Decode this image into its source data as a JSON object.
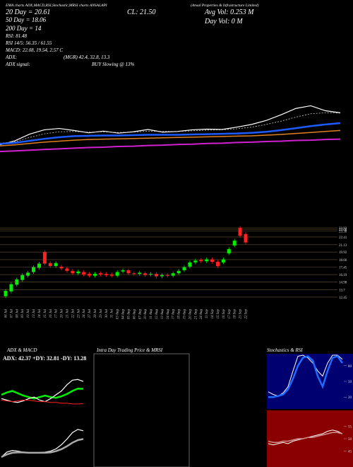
{
  "header": {
    "title": "EMA charts ADX,MACD,RSI,Stochastic,MRSI charts ANSALAPI",
    "subtitle": "(Ansal Properties & Infrastructure Limited)",
    "stats": [
      "20 Day = 20.61",
      "CL: 21.50",
      "Avg Vol: 0.253 M",
      "50 Day = 18.06",
      "Day Vol: 0 M",
      "200 Day = 14",
      "RSI: 81.48",
      "RSI 14/5: 56.35 / 61.55",
      "MACD: 22.08, 19.54, 2.57 C",
      "ADX:",
      "(MGR) 42.4, 32.8, 13.3",
      "ADX signal:",
      "BUY Slowing @ 13%"
    ]
  },
  "chart_data": [
    {
      "type": "line",
      "ylim": [
        8,
        26
      ],
      "series": [
        {
          "color": "#ffffff",
          "values": [
            12.3,
            13.5,
            15.5,
            16.8,
            17.2,
            16.6,
            15.9,
            16.4,
            15.8,
            16.2,
            16.9,
            16.1,
            16.3,
            16.8,
            17.0,
            16.9,
            17.6,
            18.4,
            19.6,
            21.3,
            23.2,
            24.0,
            22.5,
            21.9
          ]
        },
        {
          "color": "#cccccc",
          "values": [
            12.8,
            13.2,
            14.5,
            15.6,
            16.2,
            16.3,
            16.1,
            16.2,
            16.0,
            16.1,
            16.4,
            16.3,
            16.3,
            16.5,
            16.7,
            16.8,
            17.1,
            17.6,
            18.4,
            19.4,
            20.6,
            21.6,
            21.9,
            21.8
          ]
        },
        {
          "color": "#1e5bff",
          "values": [
            12.6,
            12.9,
            13.5,
            14.1,
            14.6,
            14.9,
            15.0,
            15.1,
            15.1,
            15.2,
            15.3,
            15.3,
            15.3,
            15.4,
            15.5,
            15.6,
            15.7,
            15.9,
            16.2,
            16.7,
            17.3,
            17.9,
            18.4,
            18.8
          ]
        },
        {
          "color": "#e08020",
          "values": [
            12.0,
            12.3,
            12.7,
            13.1,
            13.4,
            13.7,
            13.9,
            14.0,
            14.1,
            14.2,
            14.3,
            14.4,
            14.5,
            14.6,
            14.7,
            14.8,
            14.9,
            15.0,
            15.2,
            15.4,
            15.7,
            16.0,
            16.3,
            16.6
          ]
        },
        {
          "color": "#d020d0",
          "values": [
            10.3,
            10.5,
            10.7,
            10.9,
            11.1,
            11.3,
            11.5,
            11.6,
            11.8,
            11.9,
            12.1,
            12.2,
            12.4,
            12.5,
            12.7,
            12.8,
            13.0,
            13.1,
            13.3,
            13.4,
            13.6,
            13.7,
            13.9,
            14.0
          ]
        }
      ]
    },
    {
      "type": "candlestick",
      "ylim": [
        11.86,
        24.74
      ],
      "yticks": [
        23.92,
        23.68,
        23.38,
        22.41,
        21.13,
        19.92,
        18.66,
        17.45,
        16.19,
        14.98,
        13.7,
        12.45
      ],
      "grid": true,
      "up_color": "#00ee00",
      "down_color": "#ff2020",
      "categories": [
        "06 Jul",
        "07 Jul",
        "08 Jul",
        "09 Jul",
        "10 Jul",
        "13 Jul",
        "14 Jul",
        "15 Jul",
        "16 Jul",
        "17 Jul",
        "20 Jul",
        "21 Jul",
        "22 Jul",
        "23 Jul",
        "24 Jul",
        "27 Jul",
        "28 Jul",
        "29 Jul",
        "30 Jul",
        "31 Jul",
        "03 Aug",
        "04 Aug",
        "05 Aug",
        "06 Aug",
        "07 Aug",
        "10 Aug",
        "11 Aug",
        "12 Aug",
        "13 Aug",
        "14 Aug",
        "17 Aug",
        "18 Aug",
        "19 Aug",
        "20 Aug",
        "21 Aug",
        "24 Aug",
        "11 Sep",
        "14 Sep",
        "15 Sep",
        "16 Sep",
        "17 Sep",
        "18 Sep",
        "21 Sep",
        "22 Sep"
      ],
      "open": [
        12.6,
        13.4,
        14.5,
        15.3,
        16.0,
        16.6,
        17.3,
        19.9,
        18.1,
        17.6,
        17.5,
        17.2,
        16.8,
        16.4,
        16.6,
        16.3,
        16.0,
        16.4,
        16.3,
        16.2,
        16.0,
        16.7,
        16.9,
        16.4,
        16.3,
        16.4,
        16.2,
        16.3,
        15.9,
        16.1,
        16.0,
        16.4,
        16.9,
        17.5,
        18.2,
        18.6,
        18.4,
        18.7,
        18.3,
        18.2,
        19.7,
        21.0,
        23.9,
        22.9
      ],
      "close": [
        13.5,
        14.6,
        15.4,
        16.1,
        16.5,
        17.4,
        18.0,
        18.0,
        17.6,
        18.1,
        17.2,
        16.8,
        16.4,
        16.7,
        16.2,
        16.0,
        16.3,
        16.2,
        16.1,
        16.0,
        16.6,
        16.9,
        16.4,
        16.3,
        16.5,
        16.1,
        16.3,
        15.9,
        16.1,
        16.0,
        16.4,
        16.8,
        17.4,
        18.2,
        18.5,
        18.4,
        18.7,
        18.3,
        17.6,
        18.7,
        20.4,
        21.8,
        22.6,
        21.5
      ],
      "high": [
        13.8,
        14.9,
        15.7,
        16.4,
        16.8,
        17.7,
        18.3,
        20.2,
        18.4,
        18.4,
        17.8,
        17.5,
        17.1,
        17.0,
        16.9,
        16.6,
        16.6,
        16.7,
        16.6,
        16.5,
        16.9,
        17.2,
        17.2,
        16.7,
        16.8,
        16.7,
        16.6,
        16.6,
        16.4,
        16.4,
        16.7,
        17.1,
        17.7,
        18.5,
        18.8,
        18.9,
        19.0,
        19.0,
        18.6,
        19.0,
        20.7,
        22.1,
        24.2,
        23.2
      ],
      "low": [
        12.3,
        13.1,
        14.2,
        15.0,
        15.7,
        16.3,
        17.0,
        17.7,
        17.3,
        17.3,
        16.9,
        16.5,
        16.1,
        16.1,
        15.9,
        15.7,
        15.7,
        15.9,
        15.8,
        15.7,
        15.7,
        16.4,
        16.1,
        16.0,
        16.0,
        15.8,
        15.9,
        15.6,
        15.6,
        15.7,
        15.7,
        16.1,
        16.6,
        17.2,
        17.9,
        18.1,
        18.1,
        18.0,
        17.3,
        17.9,
        19.4,
        20.7,
        22.3,
        21.2
      ]
    },
    {
      "type": "line",
      "title": "ADX & MACD",
      "annotation": "ADX: 42.37 +DY: 32.81 -DY: 13.28",
      "ylim": [
        0,
        60
      ],
      "series": [
        {
          "color": "#00ee00",
          "values": [
            25,
            28,
            30,
            27,
            24,
            22,
            20,
            22,
            24,
            22,
            21,
            23,
            26,
            30,
            33,
            32.8
          ]
        },
        {
          "color": "#ffffff",
          "values": [
            20,
            18,
            16,
            15,
            17,
            20,
            22,
            18,
            16,
            20,
            25,
            30,
            38,
            44,
            45,
            42.4
          ]
        },
        {
          "color": "#ff2020",
          "values": [
            18,
            17,
            16,
            17,
            18,
            18,
            17,
            16,
            16,
            15,
            15,
            14,
            14,
            13,
            13,
            13.3
          ]
        }
      ]
    },
    {
      "type": "line",
      "ylim": [
        12,
        24
      ],
      "series": [
        {
          "color": "#ffffff",
          "values": [
            14,
            15.5,
            16,
            15.8,
            15.5,
            15.3,
            15.2,
            15.4,
            15.5,
            15.8,
            16.5,
            17.8,
            19.5,
            21.5,
            22.5,
            22.08
          ]
        },
        {
          "color": "#aaaaaa",
          "values": [
            14,
            14.8,
            15.3,
            15.4,
            15.4,
            15.3,
            15.3,
            15.3,
            15.3,
            15.4,
            15.8,
            16.4,
            17.3,
            18.4,
            19.2,
            19.54
          ]
        }
      ]
    },
    {
      "type": "line",
      "title": "Intra Day Trading Price & MRSI",
      "ylim": [
        0,
        100
      ],
      "series": []
    },
    {
      "type": "line",
      "title": "Stochastics & RSI",
      "ylim": [
        0,
        100
      ],
      "yticks": [
        80,
        50,
        20
      ],
      "series": [
        {
          "color": "#ffffff",
          "values": [
            30,
            25,
            22,
            28,
            40,
            70,
            98,
            100,
            95,
            85,
            70,
            60,
            85,
            100,
            100,
            92
          ]
        },
        {
          "color": "#1e6bff",
          "values": [
            20,
            20,
            22,
            25,
            35,
            55,
            80,
            95,
            98,
            90,
            60,
            40,
            70,
            95,
            98,
            85
          ]
        }
      ]
    },
    {
      "type": "line",
      "ylim": [
        40,
        60
      ],
      "yticks": [
        55,
        50,
        45
      ],
      "series": [
        {
          "color": "#ffffff",
          "values": [
            48,
            47.5,
            48,
            48.5,
            48,
            49,
            49.5,
            50,
            50.5,
            51,
            51.5,
            52,
            53,
            53.5,
            53,
            52
          ]
        },
        {
          "color": "#d09090",
          "values": [
            49,
            48.5,
            48.5,
            49,
            49,
            49.5,
            50,
            50,
            50.5,
            50.5,
            51,
            51.5,
            52,
            52.5,
            52.5,
            52
          ]
        }
      ]
    }
  ]
}
